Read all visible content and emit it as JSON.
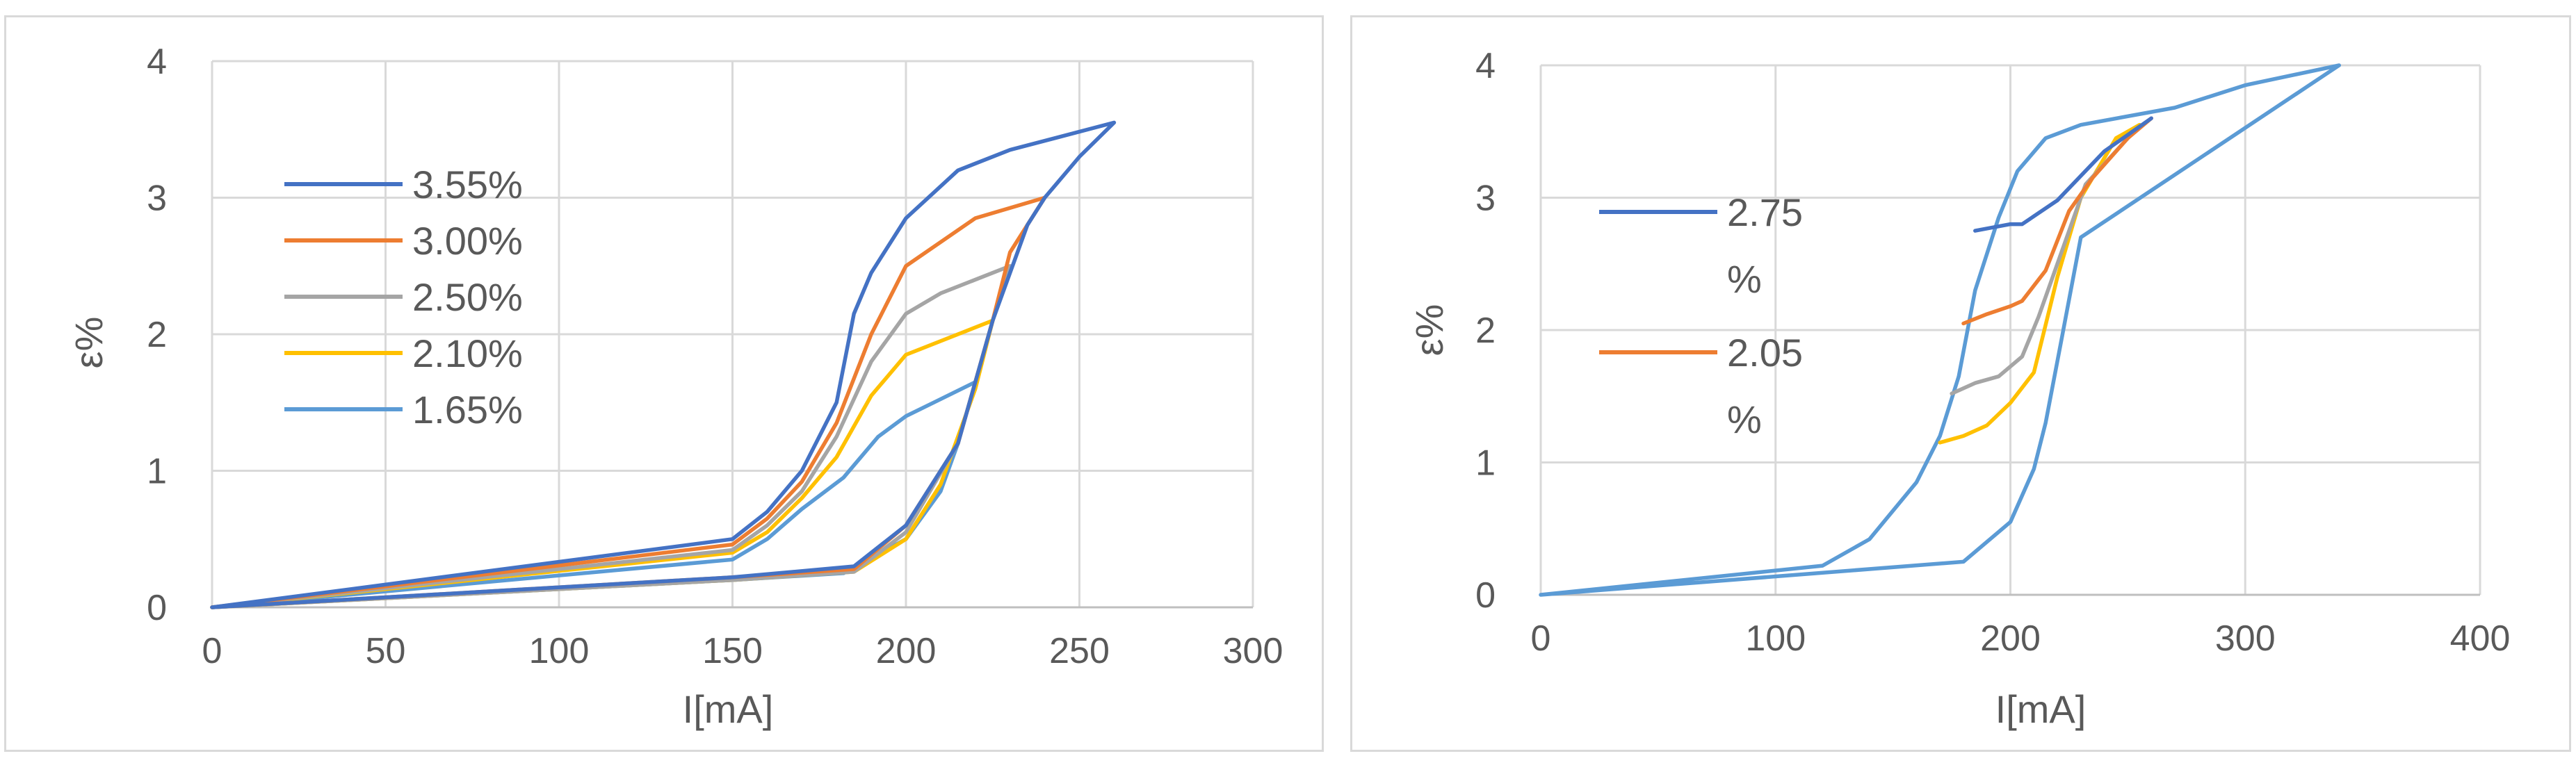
{
  "chart_data": [
    {
      "type": "line",
      "xlabel": "I[mA]",
      "ylabel": "ε%",
      "xlim": [
        0,
        300
      ],
      "ylim": [
        0,
        4
      ],
      "xticks": [
        0,
        50,
        100,
        150,
        200,
        250,
        300
      ],
      "yticks": [
        0,
        1,
        2,
        3,
        4
      ],
      "grid": true,
      "legend_position": "left",
      "series": [
        {
          "name": "3.55%",
          "color": "#4472C4",
          "x": [
            0,
            150,
            160,
            170,
            175,
            180,
            185,
            190,
            200,
            215,
            230,
            260,
            250,
            240,
            235,
            225,
            215,
            200,
            185,
            150,
            0
          ],
          "y": [
            0,
            0.5,
            0.7,
            1.0,
            1.25,
            1.5,
            2.15,
            2.45,
            2.85,
            3.2,
            3.35,
            3.55,
            3.3,
            3.0,
            2.8,
            2.1,
            1.2,
            0.6,
            0.3,
            0.22,
            0
          ]
        },
        {
          "name": "3.00%",
          "color": "#ED7D31",
          "x": [
            0,
            150,
            160,
            170,
            180,
            190,
            200,
            220,
            240,
            230,
            225,
            215,
            200,
            185,
            150,
            0
          ],
          "y": [
            0,
            0.46,
            0.65,
            0.92,
            1.35,
            2.0,
            2.5,
            2.85,
            3.0,
            2.6,
            2.1,
            1.2,
            0.6,
            0.28,
            0.22,
            0
          ]
        },
        {
          "name": "2.50%",
          "color": "#A5A5A5",
          "x": [
            0,
            150,
            160,
            170,
            180,
            190,
            200,
            210,
            230,
            225,
            215,
            200,
            185,
            150,
            0
          ],
          "y": [
            0,
            0.42,
            0.6,
            0.85,
            1.25,
            1.8,
            2.15,
            2.3,
            2.5,
            2.1,
            1.2,
            0.55,
            0.26,
            0.2,
            0
          ]
        },
        {
          "name": "2.10%",
          "color": "#FFC000",
          "x": [
            0,
            150,
            160,
            170,
            180,
            190,
            200,
            225,
            220,
            210,
            200,
            185,
            150,
            0
          ],
          "y": [
            0,
            0.4,
            0.55,
            0.8,
            1.1,
            1.55,
            1.85,
            2.1,
            1.6,
            0.9,
            0.5,
            0.26,
            0.2,
            0
          ]
        },
        {
          "name": "1.65%",
          "color": "#5B9BD5",
          "x": [
            0,
            150,
            160,
            170,
            182,
            192,
            200,
            208,
            220,
            215,
            210,
            200,
            182,
            150,
            0
          ],
          "y": [
            0,
            0.35,
            0.5,
            0.72,
            0.95,
            1.25,
            1.4,
            1.5,
            1.65,
            1.2,
            0.85,
            0.5,
            0.25,
            0.2,
            0
          ]
        }
      ]
    },
    {
      "type": "line",
      "xlabel": "I[mA]",
      "ylabel": "ε%",
      "xlim": [
        0,
        400
      ],
      "ylim": [
        0,
        4
      ],
      "xticks": [
        0,
        100,
        200,
        300,
        400
      ],
      "yticks": [
        0,
        1,
        2,
        3,
        4
      ],
      "grid": true,
      "legend_position": "left",
      "series": [
        {
          "name": "2.75 %",
          "color": "#4472C4",
          "x": [
            185,
            200,
            205,
            220,
            240,
            260
          ],
          "y": [
            2.75,
            2.8,
            2.8,
            2.98,
            3.35,
            3.6
          ]
        },
        {
          "name": "2.05 %",
          "color": "#ED7D31",
          "x": [
            180,
            190,
            200,
            205,
            215,
            225,
            235,
            250,
            260
          ],
          "y": [
            2.05,
            2.12,
            2.18,
            2.22,
            2.45,
            2.9,
            3.15,
            3.45,
            3.6
          ]
        },
        {
          "name": "",
          "color": "#A5A5A5",
          "x": [
            175,
            185,
            195,
            205,
            212,
            222,
            232,
            250
          ],
          "y": [
            1.52,
            1.6,
            1.65,
            1.8,
            2.1,
            2.6,
            3.1,
            3.45
          ]
        },
        {
          "name": "",
          "color": "#FFC000",
          "x": [
            170,
            180,
            190,
            200,
            210,
            220,
            230,
            245,
            255
          ],
          "y": [
            1.15,
            1.2,
            1.28,
            1.45,
            1.68,
            2.4,
            3.0,
            3.45,
            3.55
          ]
        },
        {
          "name": "",
          "color": "#5B9BD5",
          "x": [
            0,
            120,
            140,
            160,
            170,
            178,
            185,
            195,
            203,
            215,
            230,
            270,
            300,
            340,
            230,
            222,
            215,
            210,
            200,
            180,
            0
          ],
          "y": [
            0,
            0.22,
            0.42,
            0.85,
            1.2,
            1.65,
            2.3,
            2.85,
            3.2,
            3.45,
            3.55,
            3.68,
            3.85,
            4.0,
            2.7,
            1.95,
            1.3,
            0.95,
            0.55,
            0.25,
            0
          ]
        }
      ]
    }
  ]
}
